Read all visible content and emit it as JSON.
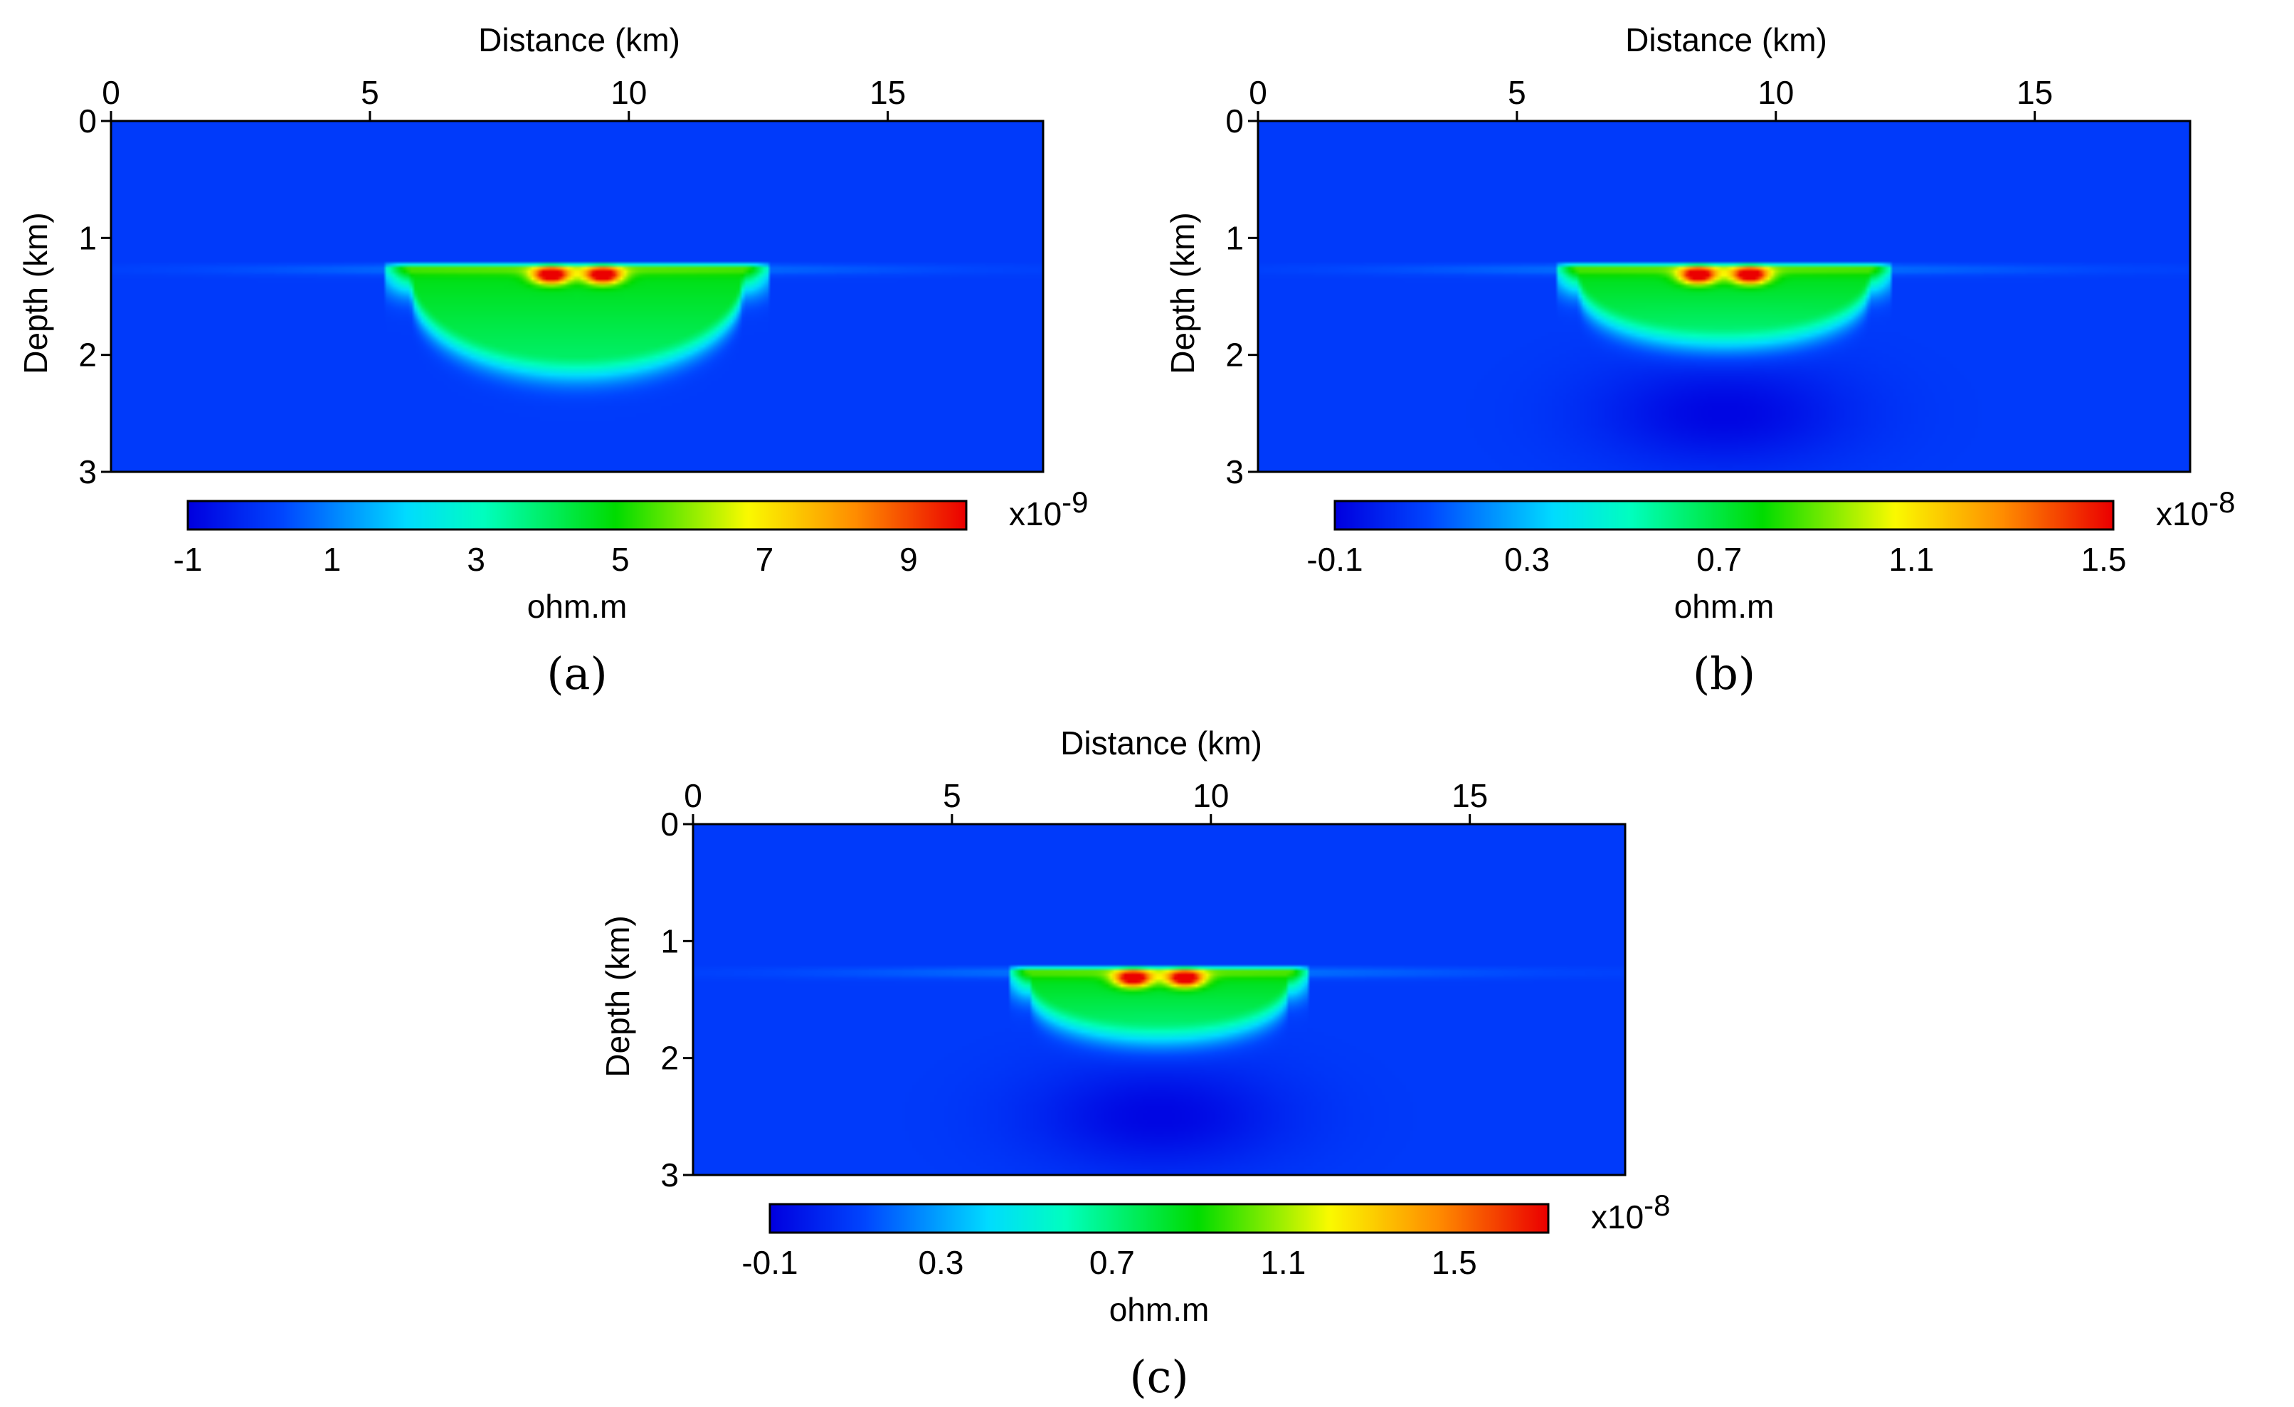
{
  "figure": {
    "x_axis_label": "Distance (km)",
    "y_axis_label": "Depth (km)",
    "colorbar_unit": "ohm.m"
  },
  "chart_data": [
    {
      "type": "heatmap",
      "panel_label": "(a)",
      "xlabel": "Distance (km)",
      "ylabel": "Depth (km)",
      "xlim": [
        0,
        18
      ],
      "ylim": [
        0,
        3
      ],
      "x_ticks": [
        "0",
        "5",
        "10",
        "15"
      ],
      "x_tick_values": [
        0,
        5,
        10,
        15
      ],
      "y_ticks": [
        "0",
        "1",
        "2",
        "3"
      ],
      "y_tick_values": [
        0,
        1,
        2,
        3
      ],
      "colorbar": {
        "unit": "ohm.m",
        "exponent_prefix": "x10",
        "exponent": "-9",
        "range": [
          -1,
          9.8
        ],
        "ticks": [
          "-1",
          "1",
          "3",
          "5",
          "7",
          "9"
        ],
        "tick_values": [
          -1,
          1,
          3,
          5,
          7,
          9
        ]
      },
      "anomaly": {
        "top_depth_km": 1.25,
        "center_x_km": 9.0,
        "halfwidth_km": 3.2,
        "bottom_depth_km": 2.0,
        "peak_x_km": [
          8.5,
          9.5
        ],
        "peak_depth_km": 1.32,
        "negative_lobe": false
      }
    },
    {
      "type": "heatmap",
      "panel_label": "(b)",
      "xlabel": "Distance (km)",
      "ylabel": "Depth (km)",
      "xlim": [
        0,
        18
      ],
      "ylim": [
        0,
        3
      ],
      "x_ticks": [
        "0",
        "5",
        "10",
        "15"
      ],
      "x_tick_values": [
        0,
        5,
        10,
        15
      ],
      "y_ticks": [
        "0",
        "1",
        "2",
        "3"
      ],
      "y_tick_values": [
        0,
        1,
        2,
        3
      ],
      "colorbar": {
        "unit": "ohm.m",
        "exponent_prefix": "x10",
        "exponent": "-8",
        "range": [
          -0.1,
          1.52
        ],
        "ticks": [
          "-0.1",
          "0.3",
          "0.7",
          "1.1",
          "1.5"
        ],
        "tick_values": [
          -0.1,
          0.3,
          0.7,
          1.1,
          1.5
        ]
      },
      "anomaly": {
        "top_depth_km": 1.25,
        "center_x_km": 9.0,
        "halfwidth_km": 2.8,
        "bottom_depth_km": 1.75,
        "peak_x_km": [
          8.5,
          9.5
        ],
        "peak_depth_km": 1.32,
        "negative_lobe": true
      }
    },
    {
      "type": "heatmap",
      "panel_label": "(c)",
      "xlabel": "Distance (km)",
      "ylabel": "Depth (km)",
      "xlim": [
        0,
        18
      ],
      "ylim": [
        0,
        3
      ],
      "x_ticks": [
        "0",
        "5",
        "10",
        "15"
      ],
      "x_tick_values": [
        0,
        5,
        10,
        15
      ],
      "y_ticks": [
        "0",
        "1",
        "2",
        "3"
      ],
      "y_tick_values": [
        0,
        1,
        2,
        3
      ],
      "colorbar": {
        "unit": "ohm.m",
        "exponent_prefix": "x10",
        "exponent": "-8",
        "range": [
          -0.1,
          1.72
        ],
        "ticks": [
          "-0.1",
          "0.3",
          "0.7",
          "1.1",
          "1.5"
        ],
        "tick_values": [
          -0.1,
          0.3,
          0.7,
          1.1,
          1.5
        ]
      },
      "anomaly": {
        "top_depth_km": 1.25,
        "center_x_km": 9.0,
        "halfwidth_km": 2.5,
        "bottom_depth_km": 1.68,
        "peak_x_km": [
          8.5,
          9.5
        ],
        "peak_depth_km": 1.32,
        "negative_lobe": true
      }
    }
  ]
}
